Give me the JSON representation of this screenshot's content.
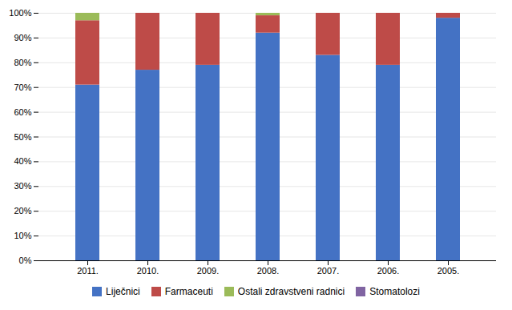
{
  "chart_data": {
    "type": "bar",
    "stacked": true,
    "categories": [
      "2011.",
      "2010.",
      "2009.",
      "2008.",
      "2007.",
      "2006.",
      "2005."
    ],
    "series": [
      {
        "name": "Liječnici",
        "color": "#4472C4",
        "values": [
          71,
          77,
          79,
          92,
          83,
          79,
          98
        ]
      },
      {
        "name": "Farmaceuti",
        "color": "#BE4B48",
        "values": [
          26,
          23,
          21,
          7,
          17,
          21,
          2
        ]
      },
      {
        "name": "Ostali zdravstveni radnici",
        "color": "#9BBB59",
        "values": [
          3,
          0,
          0,
          1,
          0,
          0,
          0
        ]
      },
      {
        "name": "Stomatolozi",
        "color": "#8064A2",
        "values": [
          0,
          0,
          0,
          0,
          0,
          0,
          0
        ]
      }
    ],
    "ylim": [
      0,
      100
    ],
    "yticks": [
      {
        "value": 0,
        "label": "0%"
      },
      {
        "value": 10,
        "label": "10%"
      },
      {
        "value": 20,
        "label": "20%"
      },
      {
        "value": 30,
        "label": "30%"
      },
      {
        "value": 40,
        "label": "40%"
      },
      {
        "value": 50,
        "label": "50%"
      },
      {
        "value": 60,
        "label": "60%"
      },
      {
        "value": 70,
        "label": "70%"
      },
      {
        "value": 80,
        "label": "80%"
      },
      {
        "value": 90,
        "label": "90%"
      },
      {
        "value": 100,
        "label": "100%"
      }
    ],
    "grid": true,
    "legend": "bottom"
  }
}
